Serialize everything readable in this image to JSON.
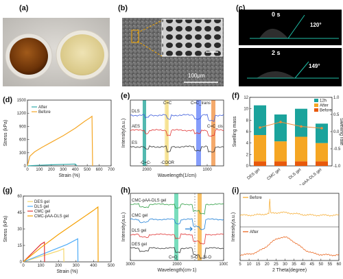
{
  "panels": {
    "a": {
      "label": "(a)"
    },
    "b": {
      "label": "(b)",
      "scalebar": "100μm"
    },
    "c": {
      "label": "(c)",
      "t0": "0 s",
      "t0_angle": "120°",
      "t2": "2 s",
      "t2_angle": "149°"
    },
    "d": {
      "label": "(d)"
    },
    "e": {
      "label": "(e)",
      "band_labels": [
        "-C=C-",
        "-COOR",
        "C=C",
        "C=C_trans",
        "C=C_cis"
      ]
    },
    "f": {
      "label": "(f)"
    },
    "g": {
      "label": "(g)"
    },
    "h": {
      "label": "(h)",
      "band_labels": [
        "C=O",
        "S-O",
        "Si-O"
      ]
    },
    "i": {
      "label": "(i)"
    }
  },
  "chart_data": [
    {
      "id": "d",
      "type": "line",
      "xlabel": "Strain (%)",
      "ylabel": "Stress (kPa)",
      "xlim": [
        0,
        700
      ],
      "ylim": [
        0,
        1500
      ],
      "xticks": [
        "0",
        "100",
        "200",
        "300",
        "400",
        "500",
        "600",
        "700"
      ],
      "yticks": [
        "0",
        "300",
        "600",
        "900",
        "1200",
        "1500"
      ],
      "legend": "top-left",
      "series": [
        {
          "name": "After",
          "color": "#2ea8a8",
          "x": [
            0,
            50,
            100,
            200,
            300,
            400,
            415
          ],
          "y": [
            0,
            8,
            15,
            25,
            34,
            42,
            0
          ]
        },
        {
          "name": "Before",
          "color": "#f5a623",
          "x": [
            0,
            20,
            60,
            120,
            200,
            300,
            400,
            480,
            520,
            540,
            545
          ],
          "y": [
            0,
            220,
            320,
            420,
            540,
            690,
            860,
            1020,
            1090,
            1130,
            0
          ]
        }
      ]
    },
    {
      "id": "e",
      "type": "line",
      "xlabel": "Wavelength(1/cm)",
      "ylabel": "Intensity(a.u.)",
      "xticks": [
        "2000",
        "1000"
      ],
      "series": [
        {
          "name": "DLS",
          "color": "#3b5bdb"
        },
        {
          "name": "AES",
          "color": "#e03131"
        },
        {
          "name": "ES",
          "color": "#333333"
        }
      ]
    },
    {
      "id": "f",
      "type": "bar",
      "ylabel": "Swelling mass",
      "ylabel2": "Swelling rate",
      "categories": [
        "DES gel",
        "CMC gel",
        "DLS gel",
        "CMC-pAA-DLS gel"
      ],
      "ylim": [
        0,
        12
      ],
      "yticks": [
        "0",
        "2",
        "4",
        "6",
        "8",
        "10",
        "12"
      ],
      "y2ticks": [
        "-1.0",
        "-0.5",
        "0.0",
        "0.5",
        "1.0"
      ],
      "legend": "top-right",
      "series": [
        {
          "name": "Before",
          "color": "#e8590c",
          "values": [
            0.8,
            0.8,
            0.8,
            0.8
          ]
        },
        {
          "name": "After",
          "color": "#f5a623",
          "values": [
            4.6,
            3.5,
            4.3,
            3.2
          ]
        },
        {
          "name": "12h",
          "color": "#1ba39c",
          "values": [
            5.2,
            4.7,
            4.9,
            3.4
          ]
        }
      ],
      "swelling_rate": [
        0.12,
        0.28,
        0.15,
        0.1
      ]
    },
    {
      "id": "g",
      "type": "line",
      "xlabel": "Strain (%)",
      "ylabel": "Stress (kPa)",
      "xlim": [
        0,
        500
      ],
      "ylim": [
        0,
        60
      ],
      "xticks": [
        "0",
        "100",
        "200",
        "300",
        "400",
        "500"
      ],
      "yticks": [
        "0",
        "15",
        "30",
        "45",
        "60"
      ],
      "legend": "top-left",
      "series": [
        {
          "name": "DES gel",
          "color": "#f5d76e",
          "x": [
            0,
            200,
            230,
            231
          ],
          "y": [
            0,
            10,
            12,
            0
          ]
        },
        {
          "name": "DLS gel",
          "color": "#4dabf7",
          "x": [
            0,
            250,
            310,
            311
          ],
          "y": [
            0,
            16,
            21,
            0
          ]
        },
        {
          "name": "CMC gel",
          "color": "#e03131",
          "x": [
            0,
            100,
            120,
            121
          ],
          "y": [
            0,
            16,
            18,
            0
          ]
        },
        {
          "name": "CMC-pAA-DLS gel",
          "color": "#f59f00",
          "x": [
            0,
            100,
            200,
            300,
            400,
            425,
            426
          ],
          "y": [
            0,
            13,
            25,
            36,
            47,
            50,
            0
          ]
        }
      ]
    },
    {
      "id": "h",
      "type": "line",
      "xlabel": "Wavelength(cm-1)",
      "ylabel": "Intensity(a.u.)",
      "xticks": [
        "3000",
        "2000",
        "1000"
      ],
      "series": [
        {
          "name": "CMC-pAA-DLS gel",
          "color": "#2f9e44"
        },
        {
          "name": "CMC gel",
          "color": "#1c7ed6"
        },
        {
          "name": "DLS gel",
          "color": "#e03131"
        },
        {
          "name": "DES gel",
          "color": "#333333"
        }
      ]
    },
    {
      "id": "i",
      "type": "line",
      "xlabel": "2 Theta(degree)",
      "ylabel": "Intensity(a.u.)",
      "xlim": [
        5,
        60
      ],
      "xticks": [
        "5",
        "10",
        "15",
        "20",
        "25",
        "30",
        "35",
        "40",
        "45",
        "50",
        "55",
        "60"
      ],
      "series": [
        {
          "name": "Before",
          "color": "#f5a623"
        },
        {
          "name": "After",
          "color": "#e8590c"
        }
      ]
    }
  ]
}
